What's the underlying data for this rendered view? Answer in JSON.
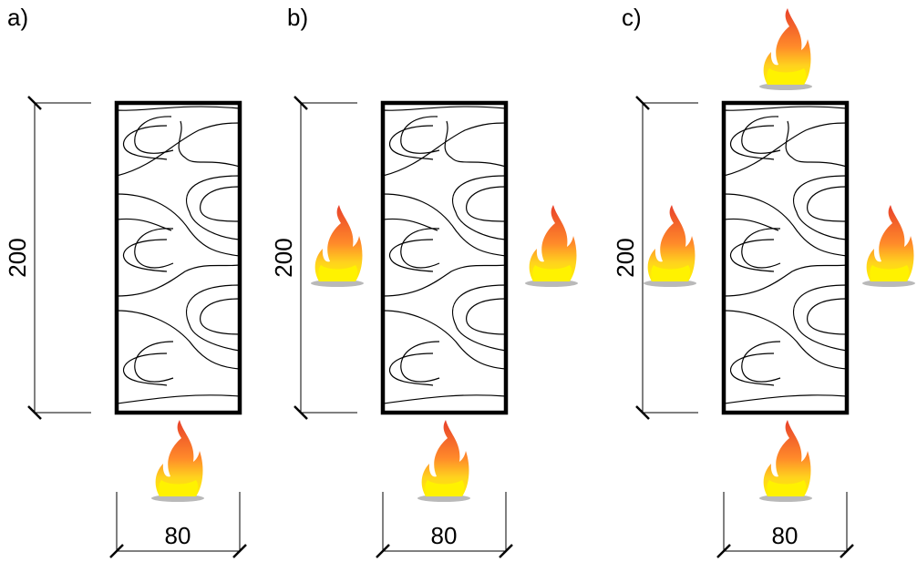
{
  "panels": [
    {
      "label": "a)",
      "height": 200,
      "width": 80
    },
    {
      "label": "b)",
      "height": 200,
      "width": 80
    },
    {
      "label": "c)",
      "height": 200,
      "width": 80
    }
  ]
}
